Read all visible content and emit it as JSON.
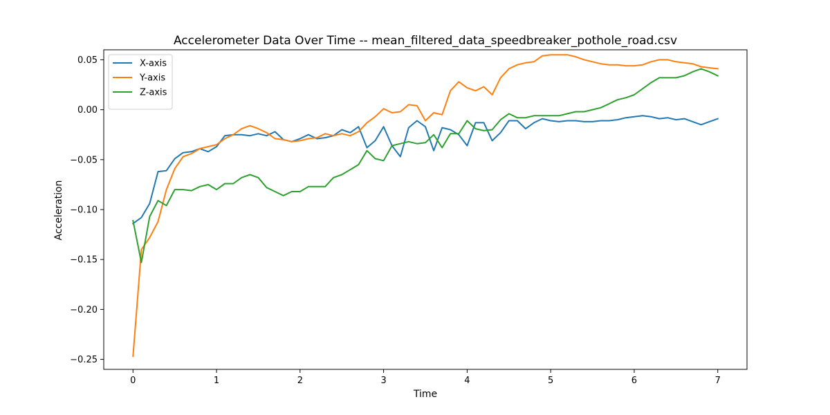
{
  "chart_data": {
    "type": "line",
    "title": "Accelerometer Data Over Time -- mean_filtered_data_speedbreaker_pothole_road.csv",
    "xlabel": "Time",
    "ylabel": "Acceleration",
    "xlim": [
      -0.35,
      7.35
    ],
    "ylim": [
      -0.26,
      0.06
    ],
    "xticks": [
      0,
      1,
      2,
      3,
      4,
      5,
      6,
      7
    ],
    "yticks": [
      -0.25,
      -0.2,
      -0.15,
      -0.1,
      -0.05,
      0.0,
      0.05
    ],
    "grid": false,
    "legend_position": "top-left",
    "x": [
      0,
      0.1,
      0.2,
      0.3,
      0.4,
      0.5,
      0.6,
      0.7,
      0.8,
      0.9,
      1.0,
      1.1,
      1.2,
      1.3,
      1.4,
      1.5,
      1.6,
      1.7,
      1.8,
      1.9,
      2.0,
      2.1,
      2.2,
      2.3,
      2.4,
      2.5,
      2.6,
      2.7,
      2.8,
      2.9,
      3.0,
      3.1,
      3.2,
      3.3,
      3.4,
      3.5,
      3.6,
      3.7,
      3.8,
      3.9,
      4.0,
      4.1,
      4.2,
      4.3,
      4.4,
      4.5,
      4.6,
      4.7,
      4.8,
      4.9,
      5.0,
      5.1,
      5.2,
      5.3,
      5.4,
      5.5,
      5.6,
      5.7,
      5.8,
      5.9,
      6.0,
      6.1,
      6.2,
      6.3,
      6.4,
      6.5,
      6.6,
      6.7,
      6.8,
      6.9,
      7.0
    ],
    "series": [
      {
        "name": "X-axis",
        "color": "#1f77b4",
        "values": [
          -0.114,
          -0.108,
          -0.094,
          -0.062,
          -0.061,
          -0.049,
          -0.043,
          -0.042,
          -0.039,
          -0.042,
          -0.037,
          -0.026,
          -0.025,
          -0.025,
          -0.026,
          -0.024,
          -0.026,
          -0.022,
          -0.03,
          -0.032,
          -0.029,
          -0.025,
          -0.029,
          -0.028,
          -0.026,
          -0.02,
          -0.023,
          -0.017,
          -0.038,
          -0.031,
          -0.017,
          -0.036,
          -0.047,
          -0.018,
          -0.011,
          -0.017,
          -0.041,
          -0.018,
          -0.02,
          -0.025,
          -0.036,
          -0.013,
          -0.013,
          -0.031,
          -0.023,
          -0.011,
          -0.011,
          -0.019,
          -0.013,
          -0.009,
          -0.011,
          -0.012,
          -0.011,
          -0.011,
          -0.012,
          -0.012,
          -0.011,
          -0.011,
          -0.01,
          -0.008,
          -0.007,
          -0.006,
          -0.007,
          -0.009,
          -0.008,
          -0.01,
          -0.009,
          -0.012,
          -0.015,
          -0.012,
          -0.009
        ]
      },
      {
        "name": "Y-axis",
        "color": "#ff7f0e",
        "values": [
          -0.247,
          -0.14,
          -0.128,
          -0.112,
          -0.08,
          -0.059,
          -0.047,
          -0.044,
          -0.039,
          -0.037,
          -0.035,
          -0.029,
          -0.025,
          -0.019,
          -0.016,
          -0.019,
          -0.023,
          -0.029,
          -0.03,
          -0.032,
          -0.031,
          -0.029,
          -0.028,
          -0.024,
          -0.026,
          -0.024,
          -0.026,
          -0.022,
          -0.013,
          -0.007,
          0.001,
          -0.003,
          -0.002,
          0.005,
          0.004,
          -0.011,
          -0.003,
          -0.005,
          0.019,
          0.028,
          0.022,
          0.019,
          0.023,
          0.015,
          0.032,
          0.041,
          0.045,
          0.047,
          0.048,
          0.054,
          0.055,
          0.055,
          0.055,
          0.053,
          0.05,
          0.048,
          0.046,
          0.045,
          0.045,
          0.044,
          0.044,
          0.045,
          0.048,
          0.05,
          0.05,
          0.048,
          0.047,
          0.046,
          0.043,
          0.042,
          0.041
        ]
      },
      {
        "name": "Z-axis",
        "color": "#2ca02c",
        "values": [
          -0.111,
          -0.153,
          -0.107,
          -0.091,
          -0.096,
          -0.08,
          -0.08,
          -0.081,
          -0.077,
          -0.075,
          -0.08,
          -0.074,
          -0.074,
          -0.068,
          -0.065,
          -0.068,
          -0.078,
          -0.082,
          -0.086,
          -0.082,
          -0.082,
          -0.077,
          -0.077,
          -0.077,
          -0.068,
          -0.065,
          -0.06,
          -0.055,
          -0.041,
          -0.049,
          -0.051,
          -0.036,
          -0.034,
          -0.032,
          -0.034,
          -0.033,
          -0.025,
          -0.038,
          -0.024,
          -0.024,
          -0.011,
          -0.019,
          -0.021,
          -0.02,
          -0.01,
          -0.004,
          -0.008,
          -0.008,
          -0.006,
          -0.006,
          -0.006,
          -0.006,
          -0.004,
          -0.002,
          -0.002,
          0.0,
          0.002,
          0.006,
          0.01,
          0.012,
          0.015,
          0.021,
          0.027,
          0.032,
          0.032,
          0.032,
          0.034,
          0.038,
          0.041,
          0.038,
          0.034
        ]
      }
    ]
  }
}
